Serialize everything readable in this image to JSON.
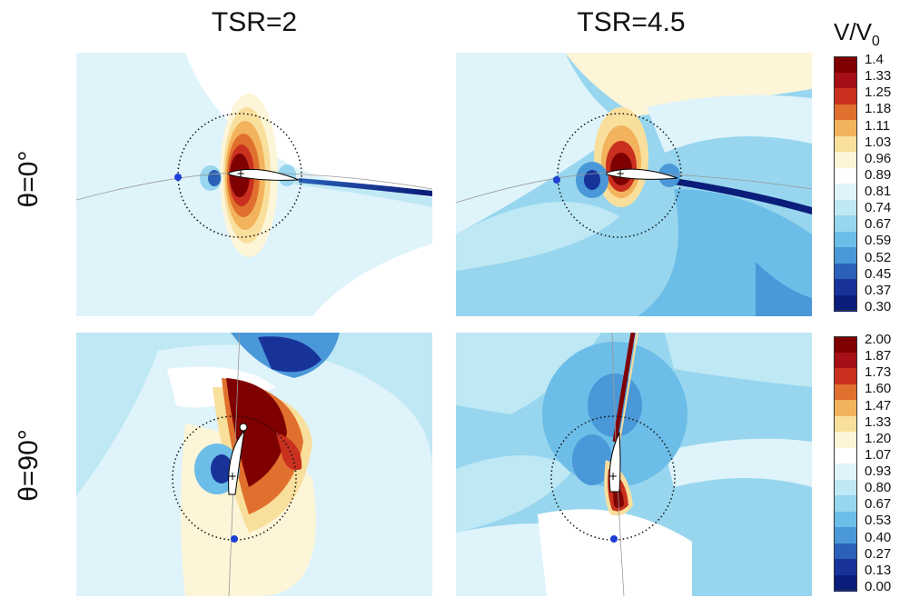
{
  "figure": {
    "col_titles": [
      "TSR=2",
      "TSR=4.5"
    ],
    "row_titles": [
      "θ=0°",
      "θ=90°"
    ]
  },
  "colorbars": [
    {
      "title_main": "V/V",
      "title_sub": "0",
      "ticks": [
        "1.4",
        "1.33",
        "1.25",
        "1.18",
        "1.11",
        "1.03",
        "0.96",
        "0.89",
        "0.81",
        "0.74",
        "0.67",
        "0.59",
        "0.52",
        "0.45",
        "0.37",
        "0.30"
      ]
    },
    {
      "ticks": [
        "2.00",
        "1.87",
        "1.73",
        "1.60",
        "1.47",
        "1.33",
        "1.20",
        "1.07",
        "0.93",
        "0.80",
        "0.67",
        "0.53",
        "0.40",
        "0.27",
        "0.13",
        "0.00"
      ]
    }
  ],
  "palette": [
    "#7f0000",
    "#a50f15",
    "#c9301e",
    "#e0702e",
    "#f2b35c",
    "#f9df9c",
    "#fdf5d8",
    "#ffffff",
    "#dff3fb",
    "#bfe8f5",
    "#97d6ee",
    "#6cbde8",
    "#4a98d8",
    "#2b62b8",
    "#17339a",
    "#0b1d7a"
  ],
  "chart_data": {
    "type": "heatmap",
    "quantity": "V/V0",
    "panels": [
      {
        "row": "θ=0°",
        "col": "TSR=2",
        "scale": "colorbar-1"
      },
      {
        "row": "θ=0°",
        "col": "TSR=4.5",
        "scale": "colorbar-1"
      },
      {
        "row": "θ=90°",
        "col": "TSR=2",
        "scale": "colorbar-2"
      },
      {
        "row": "θ=90°",
        "col": "TSR=4.5",
        "scale": "colorbar-2"
      }
    ],
    "colorbar_1_range": [
      0.3,
      1.4
    ],
    "colorbar_2_range": [
      0.0,
      2.0
    ]
  }
}
